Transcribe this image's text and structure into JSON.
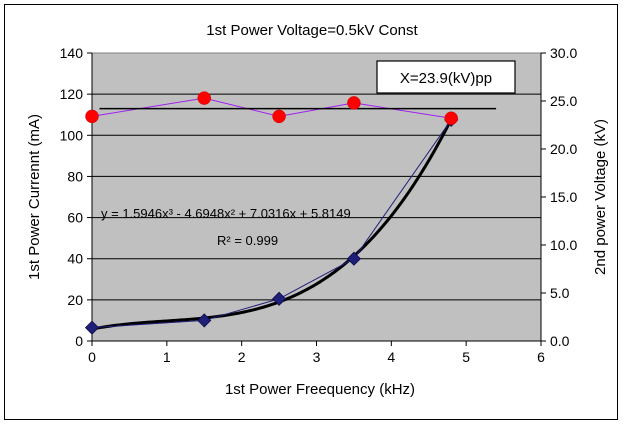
{
  "chart_data": {
    "type": "line",
    "title": "1st Power Voltage=0.5kV Const",
    "xlabel": "1st Power Freequency (kHz)",
    "ylabel": "1st Power Currennt (mA)",
    "y2label": "2nd power Voltage (kV)",
    "xlim": [
      0,
      6
    ],
    "ylim": [
      0,
      140
    ],
    "y2lim": [
      0,
      30
    ],
    "xticks": [
      "0",
      "1",
      "2",
      "3",
      "4",
      "5",
      "6"
    ],
    "yticks": [
      "0",
      "20",
      "40",
      "60",
      "80",
      "100",
      "120",
      "140"
    ],
    "y2ticks": [
      "0.0",
      "5.0",
      "10.0",
      "15.0",
      "20.0",
      "25.0",
      "30.0"
    ],
    "grid": "horizontal",
    "series": [
      {
        "axis": "left",
        "color": "#1f1f7a",
        "marker": "diamond",
        "x": [
          0,
          1.5,
          2.5,
          3.5,
          4.8
        ],
        "y": [
          6.5,
          10,
          20.5,
          40,
          107.5
        ]
      },
      {
        "axis": "right",
        "color": "#ff0000",
        "line_color": "#a020f0",
        "marker": "circle",
        "x": [
          0,
          1.5,
          2.5,
          3.5,
          4.8
        ],
        "y": [
          23.4,
          25.3,
          23.4,
          24.8,
          23.2
        ]
      }
    ],
    "trendline": {
      "axis": "left",
      "coefficients": [
        1.5946,
        -4.6948,
        7.0316,
        5.8149
      ],
      "x_range": [
        0,
        4.8
      ],
      "equation": "y = 1.5946x³ - 4.6948x² + 7.0316x + 5.8149",
      "r2": "R² = 0.999"
    },
    "reference_line": {
      "axis": "right",
      "value": 24.2,
      "x_range": [
        0.1,
        5.4
      ],
      "color": "#000000"
    },
    "annotation_box": "X=23.9(kV)pp"
  }
}
